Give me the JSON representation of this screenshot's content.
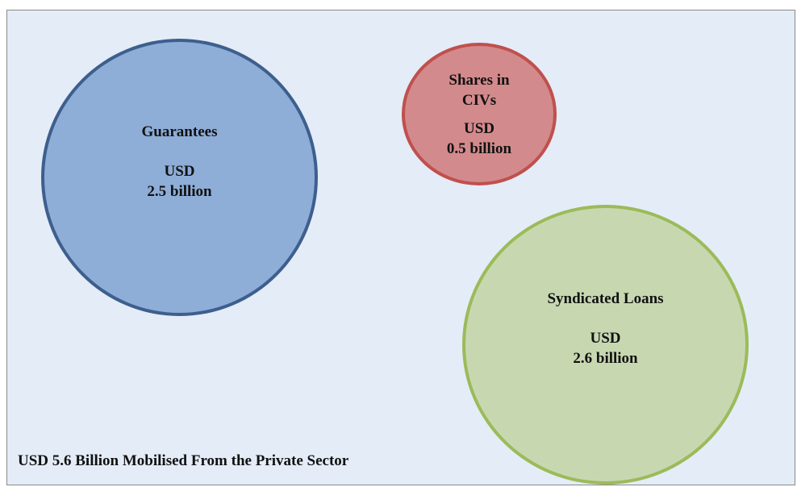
{
  "nodes": [
    {
      "label": "Guarantees",
      "currency": "USD",
      "amount": "2.5 billion"
    },
    {
      "label": "Shares in CIVs",
      "currency": "USD",
      "amount": "0.5 billion"
    },
    {
      "label": "Syndicated Loans",
      "currency": "USD",
      "amount": "2.6 billion"
    }
  ],
  "footer": "USD 5.6 Billion Mobilised From the Private Sector"
}
